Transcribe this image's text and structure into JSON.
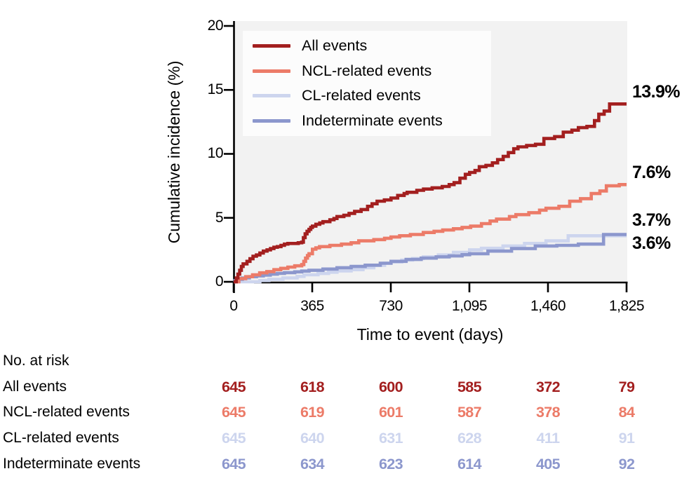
{
  "figure": {
    "y_axis_title": "Cumulative incidence (%)",
    "x_axis_title": "Time to event (days)"
  },
  "chart_data": {
    "type": "line",
    "subtype": "step-cumulative-incidence",
    "title": "",
    "xlabel": "Time to event (days)",
    "ylabel": "Cumulative incidence (%)",
    "xlim": [
      0,
      1825
    ],
    "ylim": [
      0,
      20
    ],
    "x_ticks": [
      0,
      365,
      730,
      1095,
      1460,
      1825
    ],
    "x_tick_labels": [
      "0",
      "365",
      "730",
      "1,095",
      "1,460",
      "1,825"
    ],
    "y_ticks": [
      0,
      5,
      10,
      15,
      20
    ],
    "y_tick_labels": [
      "0",
      "5",
      "10",
      "15",
      "20"
    ],
    "grid": false,
    "legend_position": "upper-left-inside",
    "plot_bg": "#f2f2f2",
    "axis_color": "#000000",
    "series": [
      {
        "name": "All events",
        "slug": "all-events",
        "color": "#a31f1f",
        "end_label": "13.9%",
        "final_value": 13.9,
        "points": [
          [
            0,
            0
          ],
          [
            12,
            0.3
          ],
          [
            20,
            0.6
          ],
          [
            28,
            0.9
          ],
          [
            36,
            1.2
          ],
          [
            44,
            1.4
          ],
          [
            62,
            1.6
          ],
          [
            76,
            1.8
          ],
          [
            90,
            2.0
          ],
          [
            106,
            2.1
          ],
          [
            122,
            2.25
          ],
          [
            138,
            2.4
          ],
          [
            155,
            2.5
          ],
          [
            171,
            2.6
          ],
          [
            187,
            2.7
          ],
          [
            203,
            2.75
          ],
          [
            220,
            2.85
          ],
          [
            236,
            2.95
          ],
          [
            252,
            3.0
          ],
          [
            300,
            3.05
          ],
          [
            316,
            3.1
          ],
          [
            324,
            3.45
          ],
          [
            332,
            3.75
          ],
          [
            341,
            3.95
          ],
          [
            350,
            4.1
          ],
          [
            358,
            4.25
          ],
          [
            366,
            4.35
          ],
          [
            382,
            4.5
          ],
          [
            400,
            4.6
          ],
          [
            415,
            4.7
          ],
          [
            447,
            4.85
          ],
          [
            466,
            4.95
          ],
          [
            480,
            5.1
          ],
          [
            512,
            5.2
          ],
          [
            536,
            5.35
          ],
          [
            562,
            5.5
          ],
          [
            592,
            5.65
          ],
          [
            622,
            5.9
          ],
          [
            643,
            6.1
          ],
          [
            666,
            6.3
          ],
          [
            700,
            6.4
          ],
          [
            731,
            6.55
          ],
          [
            762,
            6.75
          ],
          [
            792,
            6.9
          ],
          [
            806,
            7.0
          ],
          [
            851,
            7.15
          ],
          [
            882,
            7.25
          ],
          [
            922,
            7.35
          ],
          [
            969,
            7.45
          ],
          [
            1001,
            7.6
          ],
          [
            1024,
            7.75
          ],
          [
            1051,
            8.1
          ],
          [
            1076,
            8.4
          ],
          [
            1096,
            8.55
          ],
          [
            1121,
            8.7
          ],
          [
            1141,
            9.0
          ],
          [
            1172,
            9.1
          ],
          [
            1202,
            9.3
          ],
          [
            1226,
            9.55
          ],
          [
            1252,
            9.8
          ],
          [
            1276,
            10.1
          ],
          [
            1301,
            10.4
          ],
          [
            1321,
            10.55
          ],
          [
            1361,
            10.65
          ],
          [
            1402,
            10.75
          ],
          [
            1441,
            11.2
          ],
          [
            1491,
            11.35
          ],
          [
            1531,
            11.7
          ],
          [
            1571,
            11.85
          ],
          [
            1601,
            12.05
          ],
          [
            1641,
            12.15
          ],
          [
            1676,
            12.6
          ],
          [
            1696,
            13.1
          ],
          [
            1721,
            13.35
          ],
          [
            1746,
            13.9
          ],
          [
            1825,
            13.9
          ]
        ]
      },
      {
        "name": "NCL-related events",
        "slug": "ncl-related-events",
        "color": "#ec7b68",
        "end_label": "7.6%",
        "final_value": 7.6,
        "points": [
          [
            0,
            0
          ],
          [
            24,
            0.25
          ],
          [
            56,
            0.4
          ],
          [
            88,
            0.55
          ],
          [
            121,
            0.7
          ],
          [
            154,
            0.8
          ],
          [
            187,
            0.95
          ],
          [
            219,
            1.05
          ],
          [
            252,
            1.15
          ],
          [
            284,
            1.25
          ],
          [
            316,
            1.35
          ],
          [
            326,
            1.6
          ],
          [
            334,
            1.85
          ],
          [
            343,
            2.05
          ],
          [
            350,
            2.2
          ],
          [
            366,
            2.55
          ],
          [
            382,
            2.65
          ],
          [
            399,
            2.75
          ],
          [
            447,
            2.85
          ],
          [
            501,
            2.95
          ],
          [
            546,
            3.05
          ],
          [
            581,
            3.2
          ],
          [
            651,
            3.3
          ],
          [
            701,
            3.4
          ],
          [
            731,
            3.5
          ],
          [
            771,
            3.6
          ],
          [
            821,
            3.7
          ],
          [
            881,
            3.85
          ],
          [
            931,
            3.95
          ],
          [
            971,
            4.05
          ],
          [
            1021,
            4.15
          ],
          [
            1061,
            4.25
          ],
          [
            1101,
            4.35
          ],
          [
            1151,
            4.55
          ],
          [
            1191,
            4.75
          ],
          [
            1221,
            4.9
          ],
          [
            1281,
            5.1
          ],
          [
            1311,
            5.25
          ],
          [
            1371,
            5.4
          ],
          [
            1421,
            5.6
          ],
          [
            1451,
            5.75
          ],
          [
            1511,
            5.9
          ],
          [
            1561,
            6.3
          ],
          [
            1611,
            6.5
          ],
          [
            1661,
            6.9
          ],
          [
            1701,
            7.1
          ],
          [
            1731,
            7.5
          ],
          [
            1791,
            7.6
          ],
          [
            1825,
            7.6
          ]
        ]
      },
      {
        "name": "CL-related events",
        "slug": "cl-related-events",
        "color": "#cdd5ee",
        "end_label": "3.6%",
        "final_value": 3.6,
        "points": [
          [
            0,
            0
          ],
          [
            122,
            0.1
          ],
          [
            164,
            0.2
          ],
          [
            229,
            0.3
          ],
          [
            295,
            0.42
          ],
          [
            327,
            0.55
          ],
          [
            392,
            0.65
          ],
          [
            441,
            0.75
          ],
          [
            480,
            0.85
          ],
          [
            546,
            0.95
          ],
          [
            601,
            1.1
          ],
          [
            651,
            1.28
          ],
          [
            701,
            1.45
          ],
          [
            731,
            1.55
          ],
          [
            781,
            1.7
          ],
          [
            831,
            1.82
          ],
          [
            881,
            1.95
          ],
          [
            951,
            2.1
          ],
          [
            1021,
            2.3
          ],
          [
            1096,
            2.5
          ],
          [
            1151,
            2.62
          ],
          [
            1251,
            2.8
          ],
          [
            1351,
            3.0
          ],
          [
            1451,
            3.2
          ],
          [
            1554,
            3.6
          ],
          [
            1825,
            3.6
          ]
        ]
      },
      {
        "name": "Indeterminate events",
        "slug": "indeterminate-events",
        "color": "#8c97cd",
        "end_label": "3.7%",
        "final_value": 3.7,
        "points": [
          [
            0,
            0
          ],
          [
            6,
            0.1
          ],
          [
            24,
            0.2
          ],
          [
            40,
            0.3
          ],
          [
            73,
            0.4
          ],
          [
            106,
            0.46
          ],
          [
            138,
            0.52
          ],
          [
            170,
            0.6
          ],
          [
            203,
            0.66
          ],
          [
            236,
            0.72
          ],
          [
            284,
            0.78
          ],
          [
            316,
            0.84
          ],
          [
            350,
            0.9
          ],
          [
            415,
            1.0
          ],
          [
            480,
            1.1
          ],
          [
            546,
            1.2
          ],
          [
            611,
            1.3
          ],
          [
            681,
            1.45
          ],
          [
            731,
            1.6
          ],
          [
            801,
            1.75
          ],
          [
            871,
            1.85
          ],
          [
            941,
            1.95
          ],
          [
            1001,
            2.02
          ],
          [
            1061,
            2.12
          ],
          [
            1096,
            2.2
          ],
          [
            1181,
            2.4
          ],
          [
            1291,
            2.6
          ],
          [
            1401,
            2.8
          ],
          [
            1501,
            2.85
          ],
          [
            1601,
            2.95
          ],
          [
            1718,
            3.7
          ],
          [
            1825,
            3.7
          ]
        ]
      }
    ]
  },
  "risk_table": {
    "header": "No. at risk",
    "time_points": [
      0,
      365,
      730,
      1095,
      1460,
      1825
    ],
    "rows": [
      {
        "label": "All events",
        "color": "#a31f1f",
        "values": [
          "645",
          "618",
          "600",
          "585",
          "372",
          "79"
        ]
      },
      {
        "label": "NCL-related events",
        "color": "#ec7b68",
        "values": [
          "645",
          "619",
          "601",
          "587",
          "378",
          "84"
        ]
      },
      {
        "label": "CL-related events",
        "color": "#cdd5ee",
        "values": [
          "645",
          "640",
          "631",
          "628",
          "411",
          "91"
        ]
      },
      {
        "label": "Indeterminate events",
        "color": "#8c97cd",
        "values": [
          "645",
          "634",
          "623",
          "614",
          "405",
          "92"
        ]
      }
    ]
  }
}
